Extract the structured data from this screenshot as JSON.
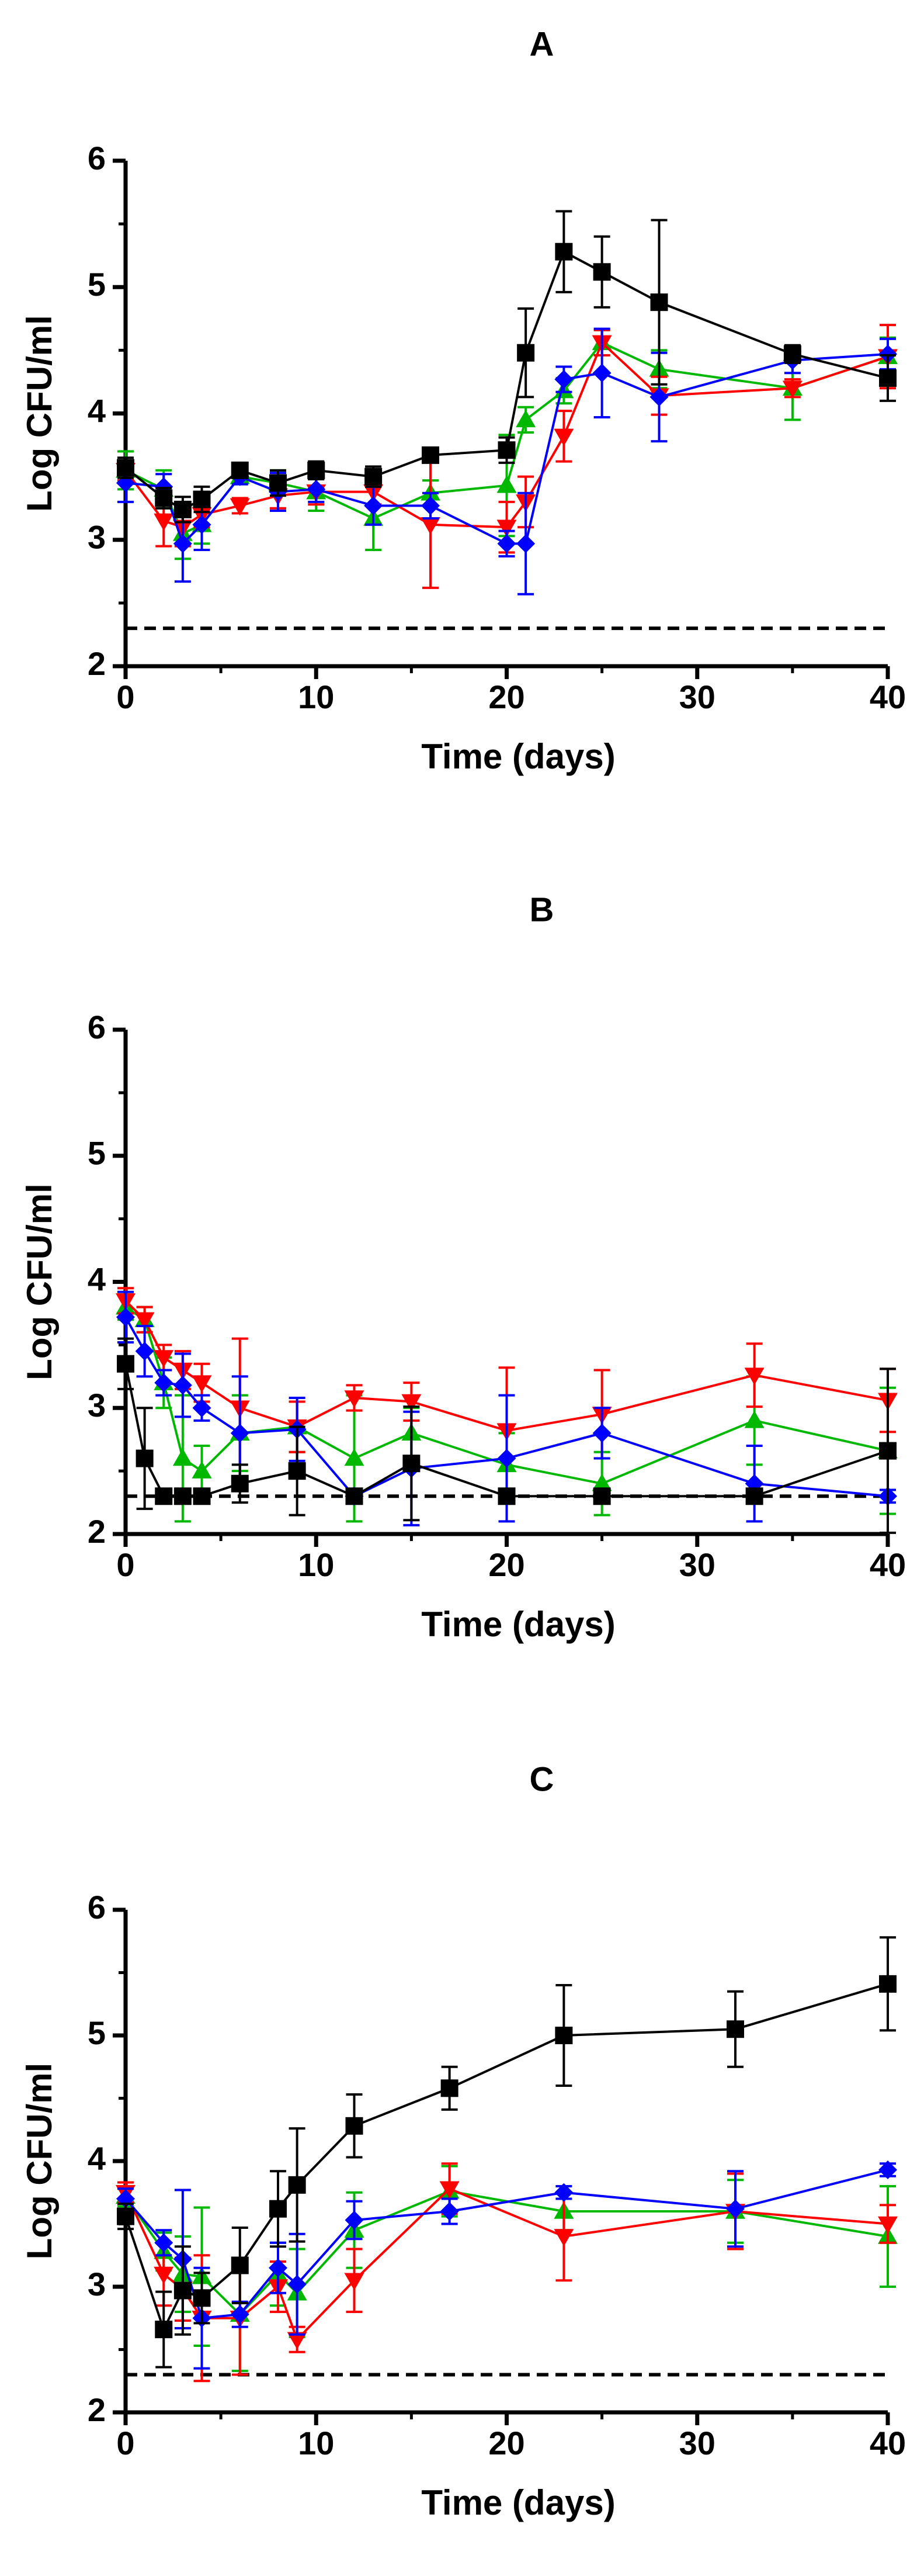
{
  "colors": {
    "black_series": "#000000",
    "red_series": "#ff0000",
    "green_series": "#00b800",
    "blue_series": "#0000ff",
    "axis": "#000000"
  },
  "chart_data": [
    {
      "type": "line",
      "title": "A",
      "xlabel": "Time (days)",
      "ylabel": "Log CFU/ml",
      "xlim": [
        0,
        40
      ],
      "ylim": [
        2,
        6
      ],
      "xticks": [
        "0",
        "10",
        "20",
        "30",
        "40"
      ],
      "yticks": [
        "2",
        "3",
        "4",
        "5",
        "6"
      ],
      "detection_limit": 2.3,
      "series": [
        {
          "name": "black",
          "marker": "square",
          "color": "#000000",
          "x": [
            0,
            2,
            3,
            4,
            6,
            8,
            10,
            13,
            16,
            20,
            21,
            23,
            25,
            28,
            35,
            40
          ],
          "values": [
            3.57,
            3.33,
            3.24,
            3.32,
            3.55,
            3.45,
            3.55,
            3.5,
            3.67,
            3.71,
            4.48,
            5.28,
            5.12,
            4.88,
            4.47,
            4.28
          ],
          "errors": [
            0.08,
            0.08,
            0.1,
            0.1,
            0.05,
            0.1,
            0.07,
            0.08,
            0.05,
            0.1,
            0.35,
            0.32,
            0.28,
            0.65,
            0.07,
            0.18
          ]
        },
        {
          "name": "red",
          "marker": "triangle-down",
          "color": "#ff0000",
          "x": [
            0,
            2,
            3,
            4,
            6,
            8,
            10,
            13,
            16,
            20,
            21,
            23,
            25,
            28,
            35,
            40
          ],
          "values": [
            3.55,
            3.15,
            3.1,
            3.2,
            3.27,
            3.35,
            3.38,
            3.38,
            3.12,
            3.1,
            3.3,
            3.82,
            4.56,
            4.14,
            4.2,
            4.45
          ],
          "errors": [
            0.08,
            0.2,
            0.15,
            0.1,
            0.06,
            0.1,
            0.1,
            0.1,
            0.5,
            0.2,
            0.2,
            0.2,
            0.1,
            0.15,
            0.07,
            0.25
          ]
        },
        {
          "name": "green",
          "marker": "triangle-up",
          "color": "#00b800",
          "x": [
            0,
            2,
            3,
            4,
            6,
            8,
            10,
            13,
            16,
            20,
            21,
            23,
            25,
            28,
            35,
            40
          ],
          "values": [
            3.55,
            3.4,
            3.05,
            3.12,
            3.5,
            3.45,
            3.38,
            3.17,
            3.37,
            3.43,
            3.95,
            4.18,
            4.56,
            4.35,
            4.2,
            4.45
          ],
          "errors": [
            0.15,
            0.15,
            0.2,
            0.15,
            0.05,
            0.1,
            0.15,
            0.25,
            0.1,
            0.4,
            0.1,
            0.1,
            0.1,
            0.15,
            0.25,
            0.15
          ]
        },
        {
          "name": "blue",
          "marker": "diamond",
          "color": "#0000ff",
          "x": [
            0,
            2,
            3,
            4,
            6,
            8,
            10,
            13,
            16,
            20,
            21,
            23,
            25,
            28,
            35,
            40
          ],
          "values": [
            3.45,
            3.42,
            2.97,
            3.12,
            3.5,
            3.38,
            3.4,
            3.27,
            3.27,
            2.97,
            2.97,
            4.27,
            4.32,
            4.13,
            4.42,
            4.47
          ],
          "errors": [
            0.15,
            0.1,
            0.3,
            0.2,
            0.06,
            0.15,
            0.1,
            0.15,
            0.1,
            0.1,
            0.4,
            0.1,
            0.35,
            0.35,
            0.1,
            0.12
          ]
        }
      ]
    },
    {
      "type": "line",
      "title": "B",
      "xlabel": "Time (days)",
      "ylabel": "Log CFU/ml",
      "xlim": [
        0,
        40
      ],
      "ylim": [
        2,
        6
      ],
      "xticks": [
        "0",
        "10",
        "20",
        "30",
        "40"
      ],
      "yticks": [
        "2",
        "3",
        "4",
        "5",
        "6"
      ],
      "detection_limit": 2.3,
      "series": [
        {
          "name": "black",
          "marker": "square",
          "color": "#000000",
          "x": [
            0,
            1,
            2,
            3,
            4,
            6,
            9,
            12,
            15,
            20,
            25,
            33,
            40
          ],
          "values": [
            3.35,
            2.6,
            2.3,
            2.3,
            2.3,
            2.4,
            2.5,
            2.3,
            2.56,
            2.3,
            2.3,
            2.3,
            2.66
          ],
          "errors": [
            0.2,
            0.4,
            0.05,
            0.05,
            0.05,
            0.15,
            0.35,
            0.05,
            0.45,
            0.05,
            0.05,
            0.05,
            0.65
          ]
        },
        {
          "name": "red",
          "marker": "triangle-down",
          "color": "#ff0000",
          "x": [
            0,
            1,
            2,
            3,
            4,
            6,
            9,
            12,
            15,
            20,
            25,
            33,
            40
          ],
          "values": [
            3.85,
            3.7,
            3.4,
            3.3,
            3.2,
            3.0,
            2.85,
            3.08,
            3.05,
            2.82,
            2.95,
            3.26,
            3.06
          ],
          "errors": [
            0.1,
            0.1,
            0.1,
            0.15,
            0.15,
            0.55,
            0.2,
            0.1,
            0.15,
            0.5,
            0.35,
            0.25,
            0.25
          ]
        },
        {
          "name": "green",
          "marker": "triangle-up",
          "color": "#00b800",
          "x": [
            0,
            1,
            2,
            3,
            4,
            6,
            9,
            12,
            15,
            20,
            25,
            33,
            40
          ],
          "values": [
            3.8,
            3.7,
            3.2,
            2.6,
            2.5,
            2.8,
            2.85,
            2.6,
            2.8,
            2.55,
            2.4,
            2.9,
            2.66
          ],
          "errors": [
            0.1,
            0.1,
            0.2,
            0.5,
            0.2,
            0.3,
            0.2,
            0.5,
            0.2,
            0.25,
            0.25,
            0.35,
            0.5
          ]
        },
        {
          "name": "blue",
          "marker": "diamond",
          "color": "#0000ff",
          "x": [
            0,
            1,
            2,
            3,
            4,
            6,
            9,
            12,
            15,
            20,
            25,
            33,
            40
          ],
          "values": [
            3.72,
            3.45,
            3.2,
            3.18,
            3.0,
            2.8,
            2.83,
            2.3,
            2.52,
            2.6,
            2.8,
            2.4,
            2.3
          ],
          "errors": [
            0.2,
            0.2,
            0.1,
            0.25,
            0.1,
            0.45,
            0.25,
            0.05,
            0.45,
            0.5,
            0.2,
            0.3,
            0.05
          ]
        }
      ]
    },
    {
      "type": "line",
      "title": "C",
      "xlabel": "Time (days)",
      "ylabel": "Log CFU/ml",
      "xlim": [
        0,
        40
      ],
      "ylim": [
        2,
        6
      ],
      "xticks": [
        "0",
        "10",
        "20",
        "30",
        "40"
      ],
      "yticks": [
        "2",
        "3",
        "4",
        "5",
        "6"
      ],
      "detection_limit": 2.3,
      "series": [
        {
          "name": "black",
          "marker": "square",
          "color": "#000000",
          "x": [
            0,
            2,
            3,
            4,
            6,
            8,
            9,
            12,
            17,
            23,
            32,
            40
          ],
          "values": [
            3.56,
            2.66,
            2.97,
            2.91,
            3.17,
            3.62,
            3.81,
            4.28,
            4.58,
            5.0,
            5.05,
            5.41
          ],
          "errors": [
            0.1,
            0.3,
            0.35,
            0.2,
            0.3,
            0.3,
            0.45,
            0.25,
            0.17,
            0.4,
            0.3,
            0.37
          ]
        },
        {
          "name": "red",
          "marker": "triangle-down",
          "color": "#ff0000",
          "x": [
            0,
            2,
            3,
            4,
            6,
            8,
            9,
            12,
            17,
            23,
            32,
            40
          ],
          "values": [
            3.75,
            3.1,
            2.98,
            2.75,
            2.75,
            3.0,
            2.58,
            3.05,
            3.78,
            3.4,
            3.6,
            3.5
          ],
          "errors": [
            0.08,
            0.25,
            0.25,
            0.5,
            0.45,
            0.2,
            0.1,
            0.25,
            0.2,
            0.35,
            0.3,
            0.15
          ]
        },
        {
          "name": "green",
          "marker": "triangle-up",
          "color": "#00b800",
          "x": [
            0,
            2,
            3,
            4,
            6,
            8,
            9,
            12,
            17,
            23,
            32,
            40
          ],
          "values": [
            3.72,
            3.28,
            3.1,
            3.08,
            2.78,
            3.1,
            2.95,
            3.45,
            3.76,
            3.6,
            3.6,
            3.4
          ],
          "errors": [
            0.08,
            0.15,
            0.3,
            0.55,
            0.45,
            0.25,
            0.35,
            0.3,
            0.2,
            0.15,
            0.25,
            0.4
          ]
        },
        {
          "name": "blue",
          "marker": "diamond",
          "color": "#0000ff",
          "x": [
            0,
            2,
            3,
            4,
            6,
            8,
            9,
            12,
            17,
            23,
            32,
            40
          ],
          "values": [
            3.7,
            3.35,
            3.22,
            2.75,
            2.78,
            3.15,
            3.02,
            3.53,
            3.6,
            3.75,
            3.62,
            3.93
          ],
          "errors": [
            0.08,
            0.1,
            0.55,
            0.4,
            0.1,
            0.2,
            0.4,
            0.15,
            0.1,
            0.05,
            0.3,
            0.05
          ]
        }
      ]
    }
  ]
}
